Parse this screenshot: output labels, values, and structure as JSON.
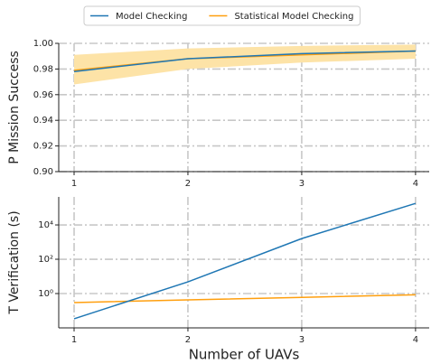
{
  "chart_data": [
    {
      "type": "line",
      "ylabel": "P Mission Success",
      "x": [
        1,
        2,
        3,
        4
      ],
      "xlim": [
        0.865,
        4.12
      ],
      "xticks": [
        1,
        2,
        3,
        4
      ],
      "ylim": [
        0.9,
        1.0
      ],
      "yticks": [
        {
          "value": 0.9,
          "label": "0.90"
        },
        {
          "value": 0.92,
          "label": "0.92"
        },
        {
          "value": 0.94,
          "label": "0.94"
        },
        {
          "value": 0.96,
          "label": "0.96"
        },
        {
          "value": 0.98,
          "label": "0.98"
        },
        {
          "value": 1.0,
          "label": "1.00"
        }
      ],
      "grid": true,
      "legend": "top",
      "series": [
        {
          "name": "Model Checking",
          "color": "#1f77b4",
          "values": [
            0.978,
            0.988,
            0.992,
            0.994
          ]
        },
        {
          "name": "Statistical Model Checking",
          "color": "#ff9f0e",
          "values": [
            0.979,
            0.988,
            0.991,
            0.994
          ],
          "band": {
            "color": "#fde3a7",
            "lower": [
              0.968,
              0.98,
              0.985,
              0.988
            ],
            "upper": [
              0.991,
              0.996,
              0.998,
              0.999
            ]
          }
        }
      ]
    },
    {
      "type": "line",
      "ylabel": "T Verification (s)",
      "xlabel": "Number of UAVs",
      "x": [
        1,
        2,
        3,
        4
      ],
      "xlim": [
        0.865,
        4.12
      ],
      "xticks": [
        1,
        2,
        3,
        4
      ],
      "log_y": true,
      "ylim": [
        0.01,
        430000
      ],
      "yticks": [
        {
          "value": 1,
          "label": "10⁰"
        },
        {
          "value": 100,
          "label": "10²"
        },
        {
          "value": 10000,
          "label": "10⁴"
        }
      ],
      "grid": true,
      "series": [
        {
          "name": "Model Checking",
          "color": "#1f77b4",
          "values": [
            0.034,
            4.8,
            1600,
            180000
          ]
        },
        {
          "name": "Statistical Model Checking",
          "color": "#ff9f0e",
          "values": [
            0.3,
            0.43,
            0.6,
            0.85
          ]
        }
      ]
    }
  ]
}
